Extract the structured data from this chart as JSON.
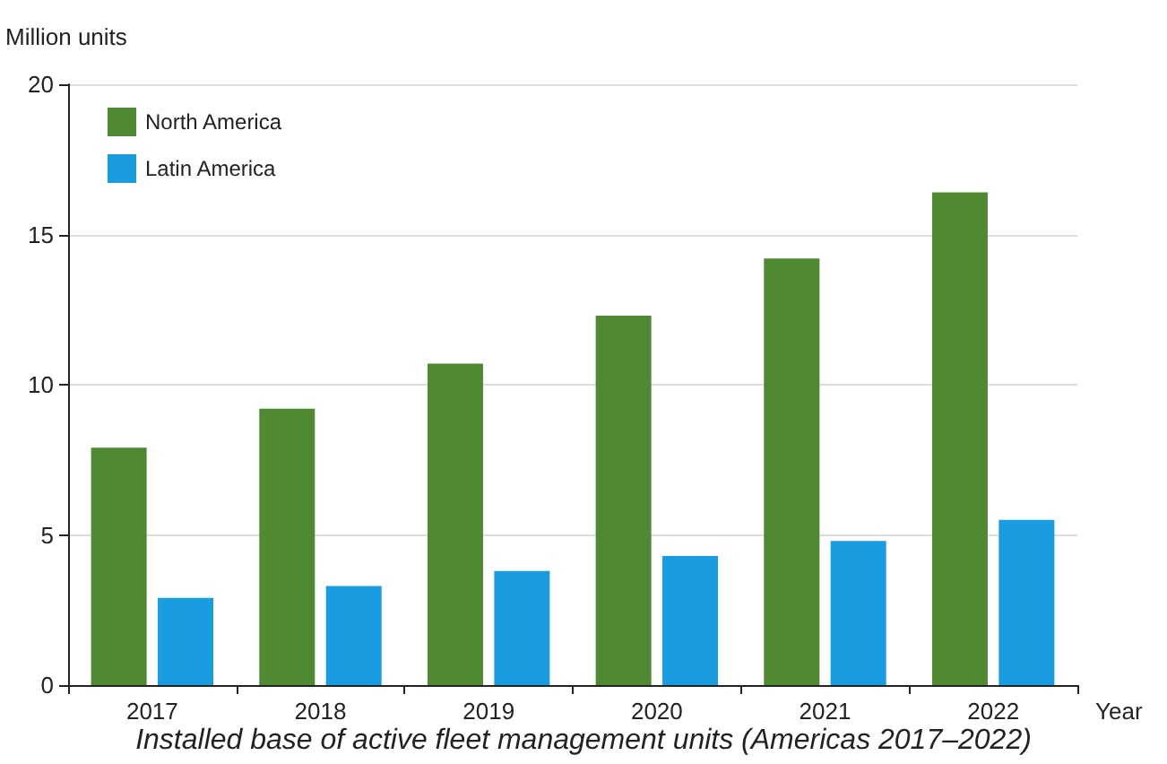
{
  "chart_data": {
    "type": "bar",
    "title": "Installed base of active fleet management units (Americas 2017–2022)",
    "xlabel": "Year",
    "ylabel": "Million units",
    "categories": [
      "2017",
      "2018",
      "2019",
      "2020",
      "2021",
      "2022"
    ],
    "series": [
      {
        "name": "North America",
        "color": "#4f8a33",
        "values": [
          7.9,
          9.2,
          10.7,
          12.3,
          14.2,
          16.4
        ]
      },
      {
        "name": "Latin America",
        "color": "#1a9de0",
        "values": [
          2.9,
          3.3,
          3.8,
          4.3,
          4.8,
          5.5
        ]
      }
    ],
    "ylim": [
      0,
      20
    ],
    "yticks": [
      0,
      5,
      10,
      15,
      20
    ],
    "grid": "y",
    "legend": "top left"
  }
}
